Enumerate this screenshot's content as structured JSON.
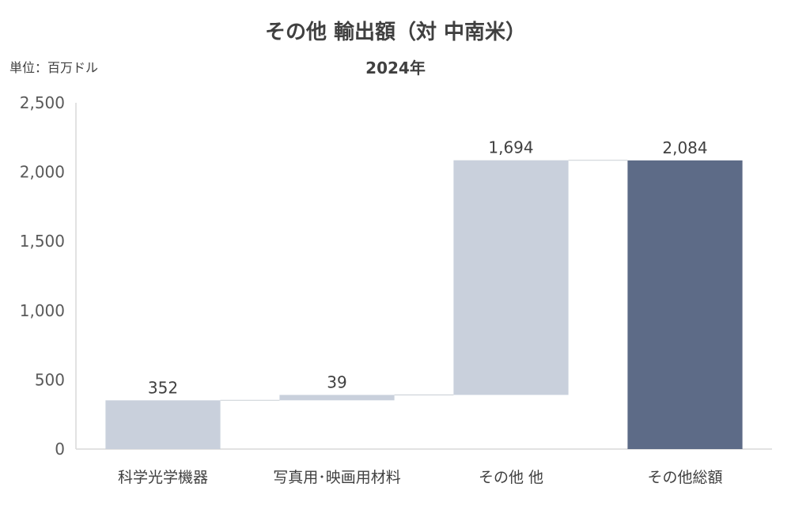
{
  "chart_data": {
    "type": "waterfall",
    "title": "その他 輸出額（対 中南米）",
    "subtitle": "2024年",
    "unit_label": "単位：百万ドル",
    "categories": [
      "科学光学機器",
      "写真用･映画用材料",
      "その他 他",
      "その他総額"
    ],
    "values": [
      352,
      39,
      1694,
      2084
    ],
    "data_labels": [
      "352",
      "39",
      "1,694",
      "2,084"
    ],
    "total_index": 3,
    "ylim": [
      0,
      2500
    ],
    "y_ticks": [
      0,
      500,
      1000,
      1500,
      2000,
      2500
    ],
    "y_tick_labels": [
      "0",
      "500",
      "1,000",
      "1,500",
      "2,000",
      "2,500"
    ],
    "grid": false,
    "colors": {
      "increment": "#c9d0dc",
      "total": "#5d6b87",
      "connector": "#d0d4da",
      "axis": "#d9d9d9"
    }
  }
}
